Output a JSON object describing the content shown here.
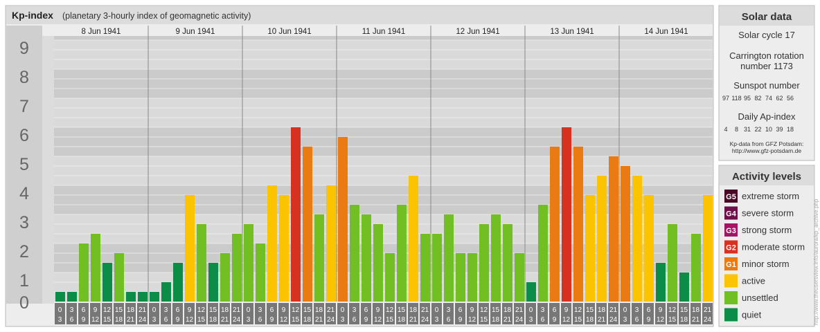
{
  "header": {
    "title": "Kp-index",
    "subtitle": "(planetary 3-hourly index of geomagnetic activity)"
  },
  "chart_data": {
    "type": "bar",
    "y_ticks": [
      "0",
      "1",
      "2",
      "3",
      "4",
      "5",
      "6",
      "7",
      "8",
      "9"
    ],
    "y_minor_marks": [
      "o",
      "+",
      "−"
    ],
    "ylim": [
      0,
      9.33
    ],
    "days": [
      "8 Jun 1941",
      "9 Jun 1941",
      "10 Jun 1941",
      "11 Jun 1941",
      "12 Jun 1941",
      "13 Jun 1941",
      "14 Jun 1941"
    ],
    "hour_ranges": [
      [
        "0",
        "3"
      ],
      [
        "3",
        "6"
      ],
      [
        "6",
        "9"
      ],
      [
        "9",
        "12"
      ],
      [
        "12",
        "15"
      ],
      [
        "15",
        "18"
      ],
      [
        "18",
        "21"
      ],
      [
        "21",
        "24"
      ]
    ],
    "values": [
      0.333,
      0.333,
      2.0,
      2.333,
      1.333,
      1.667,
      0.333,
      0.333,
      0.333,
      0.667,
      1.333,
      3.667,
      2.667,
      1.333,
      1.667,
      2.333,
      2.667,
      2.0,
      4.0,
      3.667,
      6.0,
      5.333,
      3.0,
      4.0,
      5.667,
      3.333,
      3.0,
      2.667,
      1.667,
      3.333,
      4.333,
      2.333,
      2.333,
      3.0,
      1.667,
      1.667,
      2.667,
      3.0,
      2.667,
      1.667,
      0.667,
      3.333,
      5.333,
      6.0,
      5.333,
      3.667,
      4.333,
      5.0,
      4.667,
      4.333,
      3.667,
      1.333,
      2.667,
      1.0,
      2.333,
      3.667
    ],
    "levels": [
      "quiet",
      "quiet",
      "unsettled",
      "unsettled",
      "quiet",
      "unsettled",
      "quiet",
      "quiet",
      "quiet",
      "quiet",
      "quiet",
      "active",
      "unsettled",
      "quiet",
      "unsettled",
      "unsettled",
      "unsettled",
      "unsettled",
      "active",
      "active",
      "moderate",
      "minor",
      "unsettled",
      "active",
      "minor",
      "unsettled",
      "unsettled",
      "unsettled",
      "unsettled",
      "unsettled",
      "active",
      "unsettled",
      "unsettled",
      "unsettled",
      "unsettled",
      "unsettled",
      "unsettled",
      "unsettled",
      "unsettled",
      "unsettled",
      "quiet",
      "unsettled",
      "minor",
      "moderate",
      "minor",
      "active",
      "active",
      "minor",
      "minor",
      "active",
      "active",
      "quiet",
      "unsettled",
      "quiet",
      "unsettled",
      "active"
    ],
    "level_colors": {
      "quiet": "#0b8c47",
      "unsettled": "#71bf22",
      "active": "#fcc400",
      "minor": "#ea7b12",
      "moderate": "#d7321f",
      "strong": "#a31462",
      "severe": "#6f0f4a",
      "extreme": "#4a0a26"
    }
  },
  "solar": {
    "title": "Solar data",
    "cycle": "Solar cycle 17",
    "carrington_1": "Carrington rotation",
    "carrington_2": "number 1173",
    "sunspot_title": "Sunspot number",
    "sunspot_values": [
      "97",
      "118",
      "95",
      "82",
      "74",
      "62",
      "56"
    ],
    "ap_title": "Daily Ap-index",
    "ap_values": [
      "4",
      "8",
      "31",
      "22",
      "10",
      "39",
      "18"
    ],
    "source_1": "Kp-data from GFZ Potsdam:",
    "source_2": "http://www.gfz-potsdam.de"
  },
  "activity": {
    "title": "Activity levels",
    "items": [
      {
        "badge": "G5",
        "label": "extreme storm",
        "color": "#4a0a26"
      },
      {
        "badge": "G4",
        "label": "severe storm",
        "color": "#6f0f4a"
      },
      {
        "badge": "G3",
        "label": "strong storm",
        "color": "#a31462"
      },
      {
        "badge": "G2",
        "label": "moderate storm",
        "color": "#d7321f"
      },
      {
        "badge": "G1",
        "label": "minor storm",
        "color": "#ea7b12"
      },
      {
        "badge": "",
        "label": "active",
        "color": "#fcc400"
      },
      {
        "badge": "",
        "label": "unsettled",
        "color": "#71bf22"
      },
      {
        "badge": "",
        "label": "quiet",
        "color": "#0b8c47"
      }
    ]
  },
  "watermark": "http://www.theusersview.info/aurora/kp_archive.php"
}
